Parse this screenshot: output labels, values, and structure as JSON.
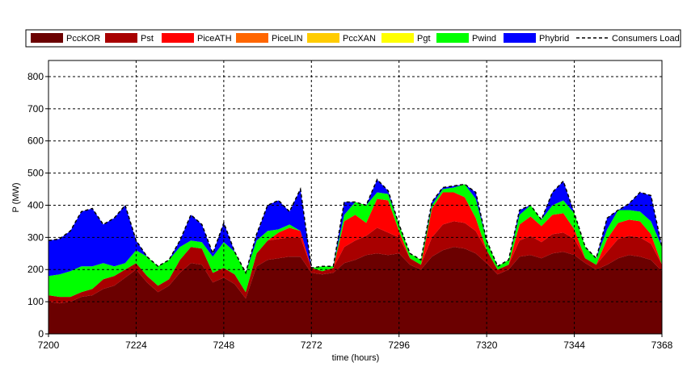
{
  "chart_data": {
    "type": "area",
    "stacked": true,
    "xlabel": "time (hours)",
    "ylabel": "P (MW)",
    "xlim": [
      7200,
      7368
    ],
    "ylim": [
      0,
      850
    ],
    "xticks": [
      7200,
      7224,
      7248,
      7272,
      7296,
      7320,
      7344,
      7368
    ],
    "yticks": [
      0,
      100,
      200,
      300,
      400,
      500,
      600,
      700,
      800
    ],
    "grid": true,
    "legend_position": "top",
    "x": [
      7200,
      7203,
      7206,
      7209,
      7212,
      7215,
      7218,
      7221,
      7224,
      7227,
      7230,
      7233,
      7236,
      7239,
      7242,
      7245,
      7248,
      7251,
      7254,
      7257,
      7260,
      7263,
      7266,
      7269,
      7272,
      7275,
      7278,
      7281,
      7284,
      7287,
      7290,
      7293,
      7296,
      7299,
      7302,
      7305,
      7308,
      7311,
      7314,
      7317,
      7320,
      7323,
      7326,
      7329,
      7332,
      7335,
      7338,
      7341,
      7344,
      7347,
      7350,
      7353,
      7356,
      7359,
      7362,
      7365,
      7368
    ],
    "series": [
      {
        "name": "PccKOR",
        "color": "#6b0000",
        "values": [
          100,
          95,
          100,
          115,
          120,
          140,
          150,
          175,
          200,
          160,
          130,
          150,
          190,
          220,
          215,
          160,
          175,
          155,
          110,
          210,
          230,
          235,
          240,
          240,
          190,
          185,
          190,
          220,
          230,
          245,
          250,
          245,
          250,
          215,
          200,
          240,
          260,
          270,
          265,
          250,
          220,
          185,
          200,
          240,
          245,
          235,
          250,
          255,
          245,
          220,
          200,
          215,
          235,
          245,
          240,
          230,
          195
        ]
      },
      {
        "name": "Pst",
        "color": "#a80000",
        "values": [
          20,
          20,
          15,
          15,
          20,
          30,
          30,
          25,
          20,
          20,
          20,
          20,
          40,
          50,
          50,
          30,
          30,
          30,
          20,
          40,
          60,
          60,
          60,
          60,
          15,
          10,
          15,
          50,
          60,
          60,
          80,
          70,
          50,
          20,
          15,
          60,
          80,
          80,
          80,
          70,
          40,
          15,
          15,
          50,
          60,
          50,
          60,
          60,
          50,
          15,
          15,
          40,
          60,
          60,
          60,
          50,
          20
        ]
      },
      {
        "name": "PiceATH",
        "color": "#ff0000",
        "values": [
          0,
          0,
          0,
          0,
          0,
          0,
          0,
          0,
          0,
          0,
          0,
          0,
          0,
          0,
          0,
          0,
          0,
          0,
          0,
          0,
          0,
          20,
          30,
          20,
          0,
          0,
          0,
          80,
          80,
          40,
          90,
          100,
          20,
          0,
          0,
          90,
          100,
          90,
          80,
          40,
          0,
          0,
          0,
          50,
          60,
          50,
          60,
          60,
          30,
          0,
          0,
          40,
          50,
          50,
          50,
          30,
          0
        ]
      },
      {
        "name": "PiceLIN",
        "color": "#ff6600",
        "values": [
          0,
          0,
          0,
          0,
          0,
          0,
          0,
          0,
          0,
          0,
          0,
          0,
          0,
          0,
          0,
          0,
          0,
          0,
          0,
          0,
          0,
          0,
          0,
          0,
          0,
          0,
          0,
          0,
          0,
          0,
          0,
          0,
          0,
          0,
          0,
          0,
          0,
          0,
          0,
          0,
          0,
          0,
          0,
          0,
          0,
          0,
          0,
          0,
          0,
          0,
          0,
          0,
          0,
          0,
          0,
          0,
          0
        ]
      },
      {
        "name": "PccXAN",
        "color": "#ffcc00",
        "values": [
          0,
          0,
          0,
          0,
          0,
          0,
          0,
          0,
          0,
          0,
          0,
          0,
          0,
          0,
          0,
          0,
          0,
          0,
          0,
          0,
          0,
          0,
          0,
          0,
          0,
          0,
          0,
          0,
          0,
          0,
          0,
          0,
          0,
          0,
          0,
          0,
          0,
          0,
          0,
          0,
          0,
          0,
          0,
          0,
          0,
          0,
          0,
          0,
          0,
          0,
          0,
          0,
          0,
          0,
          0,
          0,
          0
        ]
      },
      {
        "name": "Pgt",
        "color": "#ffff00",
        "values": [
          0,
          0,
          0,
          0,
          0,
          0,
          0,
          0,
          0,
          0,
          0,
          0,
          0,
          0,
          0,
          0,
          0,
          0,
          0,
          0,
          0,
          0,
          0,
          0,
          0,
          0,
          0,
          0,
          0,
          0,
          0,
          0,
          0,
          0,
          0,
          0,
          0,
          0,
          0,
          0,
          0,
          0,
          0,
          0,
          0,
          0,
          0,
          0,
          0,
          0,
          0,
          0,
          0,
          0,
          0,
          0,
          0
        ]
      },
      {
        "name": "Pwind",
        "color": "#00ff00",
        "values": [
          60,
          70,
          80,
          80,
          70,
          50,
          30,
          20,
          40,
          60,
          60,
          60,
          40,
          20,
          20,
          50,
          80,
          70,
          60,
          40,
          30,
          10,
          10,
          0,
          0,
          15,
          5,
          20,
          40,
          55,
          20,
          20,
          20,
          15,
          15,
          10,
          10,
          15,
          40,
          60,
          30,
          10,
          15,
          30,
          35,
          20,
          30,
          40,
          50,
          35,
          20,
          30,
          40,
          30,
          30,
          40,
          55
        ]
      },
      {
        "name": "Phybrid",
        "color": "#0000ff",
        "values": [
          110,
          110,
          125,
          170,
          180,
          120,
          150,
          180,
          30,
          0,
          0,
          0,
          20,
          80,
          55,
          10,
          60,
          0,
          0,
          20,
          80,
          90,
          40,
          130,
          0,
          0,
          0,
          40,
          0,
          0,
          40,
          10,
          0,
          0,
          0,
          10,
          5,
          5,
          0,
          20,
          0,
          0,
          0,
          15,
          0,
          0,
          40,
          60,
          0,
          0,
          0,
          35,
          0,
          20,
          60,
          80,
          0
        ]
      }
    ],
    "load_series": {
      "name": "Consumers Load",
      "style": "dashed",
      "color": "#000000"
    }
  }
}
